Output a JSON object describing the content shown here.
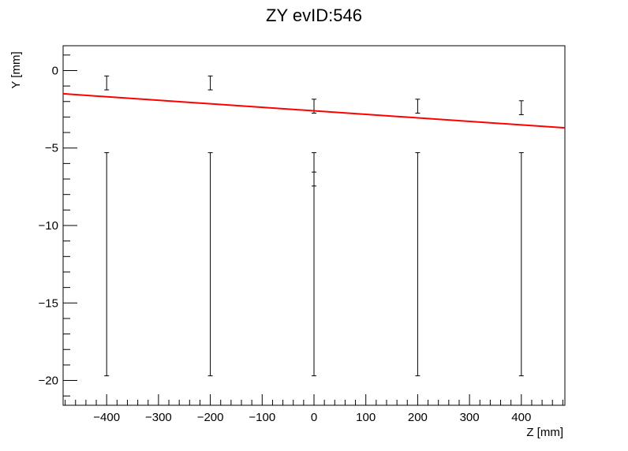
{
  "chart_data": {
    "type": "scatter",
    "title": "ZY evID:546",
    "xlabel": "Z [mm]",
    "ylabel": "Y [mm]",
    "xlim": [
      -484,
      484
    ],
    "ylim": [
      -21.6,
      1.6
    ],
    "xticks": [
      -400,
      -300,
      -200,
      -100,
      0,
      100,
      200,
      300,
      400
    ],
    "xtick_labels": [
      "−400",
      "−300",
      "−200",
      "−100",
      "0",
      "100",
      "200",
      "300",
      "400"
    ],
    "yticks": [
      0,
      -5,
      -10,
      -15,
      -20
    ],
    "ytick_labels": [
      "0",
      "−5",
      "−10",
      "−15",
      "−20"
    ],
    "grid": false,
    "series": [
      {
        "kind": "points_with_errorbars",
        "points": [
          {
            "x": -400,
            "y": -0.8,
            "yerr": 0.45
          },
          {
            "x": -200,
            "y": -0.8,
            "yerr": 0.45
          },
          {
            "x": 0,
            "y": -2.3,
            "yerr": 0.45
          },
          {
            "x": 200,
            "y": -2.3,
            "yerr": 0.45
          },
          {
            "x": 400,
            "y": -2.4,
            "yerr": 0.45
          },
          {
            "x": 0,
            "y": -7.0,
            "yerr": 0.45
          }
        ]
      },
      {
        "kind": "points_with_errorbars",
        "points": [
          {
            "x": -400,
            "y": -12.5,
            "yerr": 7.2
          },
          {
            "x": -200,
            "y": -12.5,
            "yerr": 7.2
          },
          {
            "x": 0,
            "y": -12.5,
            "yerr": 7.2
          },
          {
            "x": 200,
            "y": -12.5,
            "yerr": 7.2
          },
          {
            "x": 400,
            "y": -12.5,
            "yerr": 7.2
          }
        ]
      },
      {
        "kind": "line",
        "color": "#ff0000",
        "x": [
          -484,
          484
        ],
        "y": [
          -1.5,
          -3.7
        ]
      }
    ]
  }
}
